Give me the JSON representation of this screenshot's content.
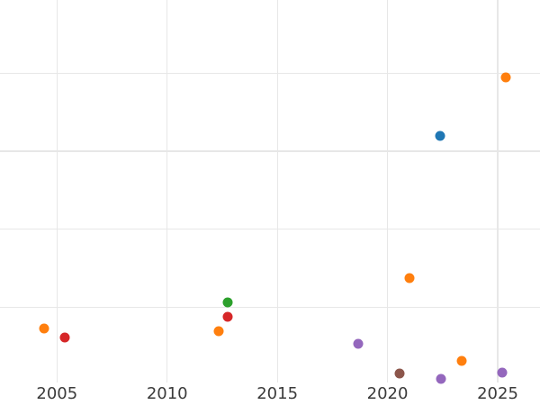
{
  "chart_data": {
    "type": "scatter",
    "title": "",
    "xlabel": "",
    "ylabel": "",
    "legend": "none visible",
    "grid": "on (light gray, no axis spines, no tick marks)",
    "x_axis": {
      "ticks": [
        {
          "label": "2005",
          "value": 2005
        },
        {
          "label": "2010",
          "value": 2010
        },
        {
          "label": "2015",
          "value": 2015
        },
        {
          "label": "2020",
          "value": 2020
        },
        {
          "label": "2025",
          "value": 2025
        }
      ],
      "visible_range_approx": [
        2002.4,
        2026.9
      ]
    },
    "y_axis": {
      "tick_labels_visible": false,
      "note": "y tick labels are cropped out of the image; y values estimated in gridline-spacing units (one unit per gridline, 0 at extrapolated bottom gridline)",
      "gridline_values": [
        1,
        2,
        3,
        4
      ],
      "visible_range_approx": [
        0.04,
        4.94
      ]
    },
    "points": [
      {
        "x": 2004.4,
        "y": 0.73,
        "color": "orange",
        "hex": "#ff7f0e"
      },
      {
        "x": 2005.36,
        "y": 0.62,
        "color": "red",
        "hex": "#d62728"
      },
      {
        "x": 2012.32,
        "y": 0.7,
        "color": "orange",
        "hex": "#ff7f0e"
      },
      {
        "x": 2012.74,
        "y": 0.88,
        "color": "red",
        "hex": "#d62728"
      },
      {
        "x": 2012.74,
        "y": 1.07,
        "color": "green",
        "hex": "#2ca02c"
      },
      {
        "x": 2018.66,
        "y": 0.53,
        "color": "purple",
        "hex": "#9467bd"
      },
      {
        "x": 2020.56,
        "y": 0.15,
        "color": "brown",
        "hex": "#8c564b"
      },
      {
        "x": 2021.01,
        "y": 1.37,
        "color": "orange",
        "hex": "#ff7f0e"
      },
      {
        "x": 2022.39,
        "y": 3.2,
        "color": "blue",
        "hex": "#1f77b4"
      },
      {
        "x": 2022.44,
        "y": 0.08,
        "color": "purple",
        "hex": "#9467bd"
      },
      {
        "x": 2023.38,
        "y": 0.32,
        "color": "orange",
        "hex": "#ff7f0e"
      },
      {
        "x": 2025.19,
        "y": 0.17,
        "color": "purple",
        "hex": "#9467bd"
      },
      {
        "x": 2025.37,
        "y": 3.94,
        "color": "orange",
        "hex": "#ff7f0e"
      }
    ],
    "palette": {
      "blue": "#1f77b4",
      "orange": "#ff7f0e",
      "green": "#2ca02c",
      "red": "#d62728",
      "purple": "#9467bd",
      "brown": "#8c564b"
    }
  },
  "styles": {
    "background": "#ffffff",
    "grid_color": "#e7e7e7",
    "tick_label_color": "#3b3b3b"
  }
}
